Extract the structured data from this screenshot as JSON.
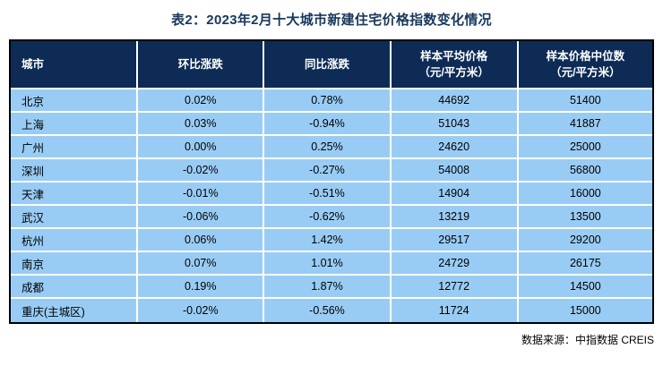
{
  "title": "表2：2023年2月十大城市新建住宅价格指数变化情况",
  "colors": {
    "title_text": "#17375D",
    "header_bg": "#0D2B55",
    "header_text": "#FFFFFF",
    "row_bg": "#99CCF5",
    "cell_text": "#000000",
    "table_border": "#000000",
    "divider": "#FFFFFF",
    "source_text": "#000000"
  },
  "table": {
    "columns": [
      {
        "label": "城市",
        "sublabel": ""
      },
      {
        "label": "环比涨跌",
        "sublabel": ""
      },
      {
        "label": "同比涨跌",
        "sublabel": ""
      },
      {
        "label": "样本平均价格",
        "sublabel": "（元/平方米）"
      },
      {
        "label": "样本价格中位数",
        "sublabel": "（元/平方米）"
      }
    ],
    "rows": [
      {
        "city": "北京",
        "mom": "0.02%",
        "yoy": "0.78%",
        "avg_price": "44692",
        "median_price": "51400"
      },
      {
        "city": "上海",
        "mom": "0.03%",
        "yoy": "-0.94%",
        "avg_price": "51043",
        "median_price": "41887"
      },
      {
        "city": "广州",
        "mom": "0.00%",
        "yoy": "0.25%",
        "avg_price": "24620",
        "median_price": "25000"
      },
      {
        "city": "深圳",
        "mom": "-0.02%",
        "yoy": "-0.27%",
        "avg_price": "54008",
        "median_price": "56800"
      },
      {
        "city": "天津",
        "mom": "-0.01%",
        "yoy": "-0.51%",
        "avg_price": "14904",
        "median_price": "16000"
      },
      {
        "city": "武汉",
        "mom": "-0.06%",
        "yoy": "-0.62%",
        "avg_price": "13219",
        "median_price": "13500"
      },
      {
        "city": "杭州",
        "mom": "0.06%",
        "yoy": "1.42%",
        "avg_price": "29517",
        "median_price": "29200"
      },
      {
        "city": "南京",
        "mom": "0.07%",
        "yoy": "1.01%",
        "avg_price": "24729",
        "median_price": "26175"
      },
      {
        "city": "成都",
        "mom": "0.19%",
        "yoy": "1.87%",
        "avg_price": "12772",
        "median_price": "14500"
      },
      {
        "city": "重庆(主城区)",
        "mom": "-0.02%",
        "yoy": "-0.56%",
        "avg_price": "11724",
        "median_price": "15000"
      }
    ]
  },
  "footer": {
    "source": "数据来源：中指数据 CREIS"
  }
}
